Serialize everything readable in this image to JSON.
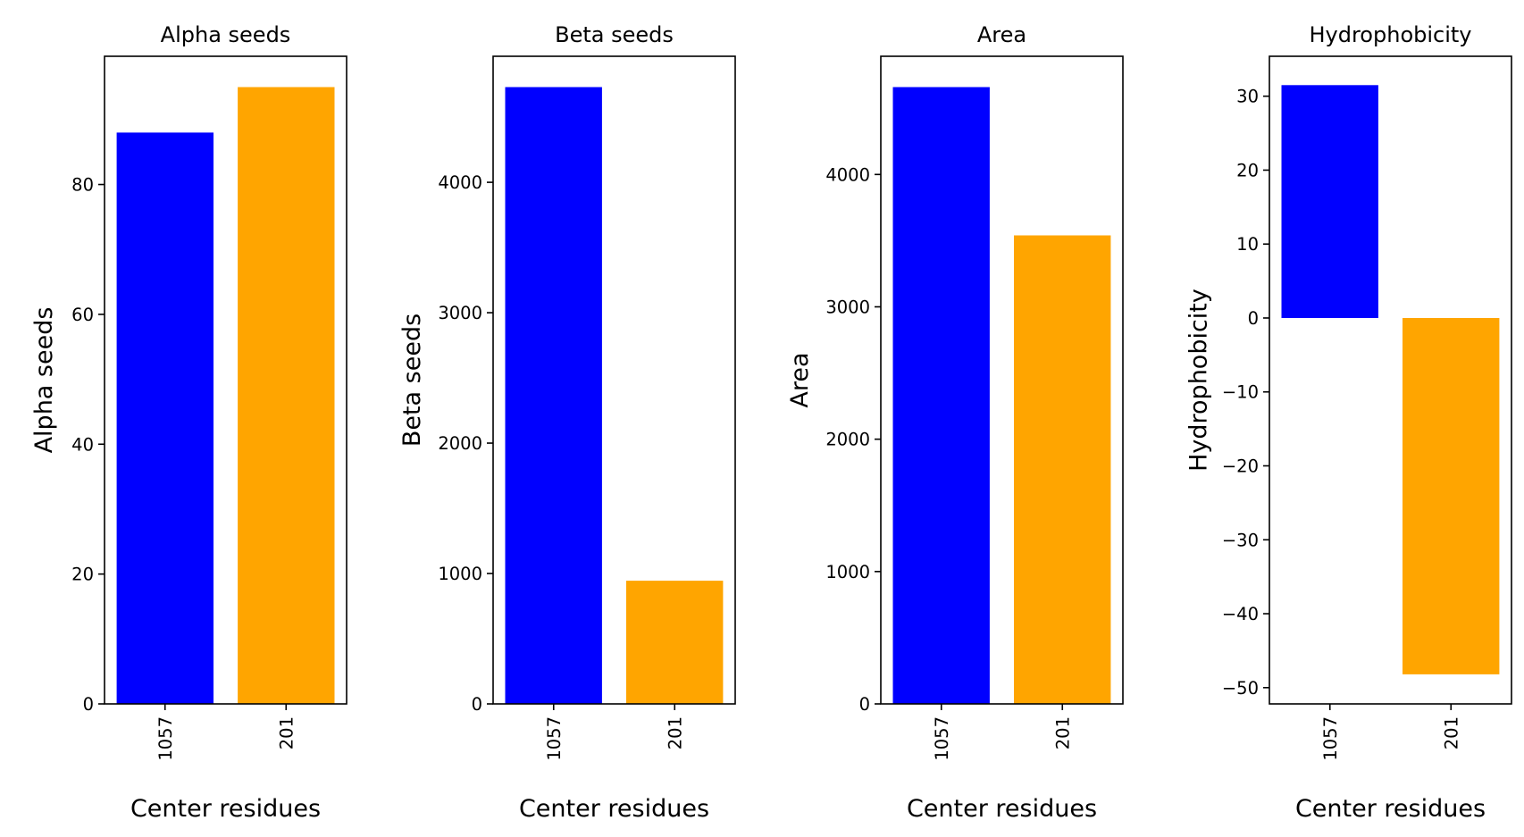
{
  "colors": {
    "first": "#0000ff",
    "second": "#ffa500",
    "axes": "#000000",
    "background": "#ffffff"
  },
  "chart_data": [
    {
      "type": "bar",
      "title": "Alpha seeds",
      "xlabel": "Center residues",
      "ylabel": "Alpha seeds",
      "categories": [
        "1057",
        "201"
      ],
      "values": [
        88,
        95
      ],
      "ylim": [
        0,
        99.75
      ],
      "yticks": [
        0,
        20,
        40,
        60,
        80
      ],
      "ytick_labels": [
        "0",
        "20",
        "40",
        "60",
        "80"
      ],
      "bar_colors": [
        "#0000ff",
        "#ffa500"
      ],
      "grid": false
    },
    {
      "type": "bar",
      "title": "Beta seeds",
      "xlabel": "Center residues",
      "ylabel": "Beta seeds",
      "categories": [
        "1057",
        "201"
      ],
      "values": [
        4730,
        945
      ],
      "ylim": [
        0,
        4966.5
      ],
      "yticks": [
        0,
        1000,
        2000,
        3000,
        4000
      ],
      "ytick_labels": [
        "0",
        "1000",
        "2000",
        "3000",
        "4000"
      ],
      "bar_colors": [
        "#0000ff",
        "#ffa500"
      ],
      "grid": false
    },
    {
      "type": "bar",
      "title": "Area",
      "xlabel": "Center residues",
      "ylabel": "Area",
      "categories": [
        "1057",
        "201"
      ],
      "values": [
        4660,
        3540
      ],
      "ylim": [
        0,
        4893
      ],
      "yticks": [
        0,
        1000,
        2000,
        3000,
        4000
      ],
      "ytick_labels": [
        "0",
        "1000",
        "2000",
        "3000",
        "4000"
      ],
      "bar_colors": [
        "#0000ff",
        "#ffa500"
      ],
      "grid": false
    },
    {
      "type": "bar",
      "title": "Hydrophobicity",
      "xlabel": "Center residues",
      "ylabel": "Hydrophobicity",
      "categories": [
        "1057",
        "201"
      ],
      "values": [
        31.5,
        -48.2
      ],
      "ylim": [
        -52.2,
        35.4
      ],
      "yticks": [
        -50,
        -40,
        -30,
        -20,
        -10,
        0,
        10,
        20,
        30
      ],
      "ytick_labels": [
        "−50",
        "−40",
        "−30",
        "−20",
        "−10",
        "0",
        "10",
        "20",
        "30"
      ],
      "bar_colors": [
        "#0000ff",
        "#ffa500"
      ],
      "grid": false
    }
  ]
}
